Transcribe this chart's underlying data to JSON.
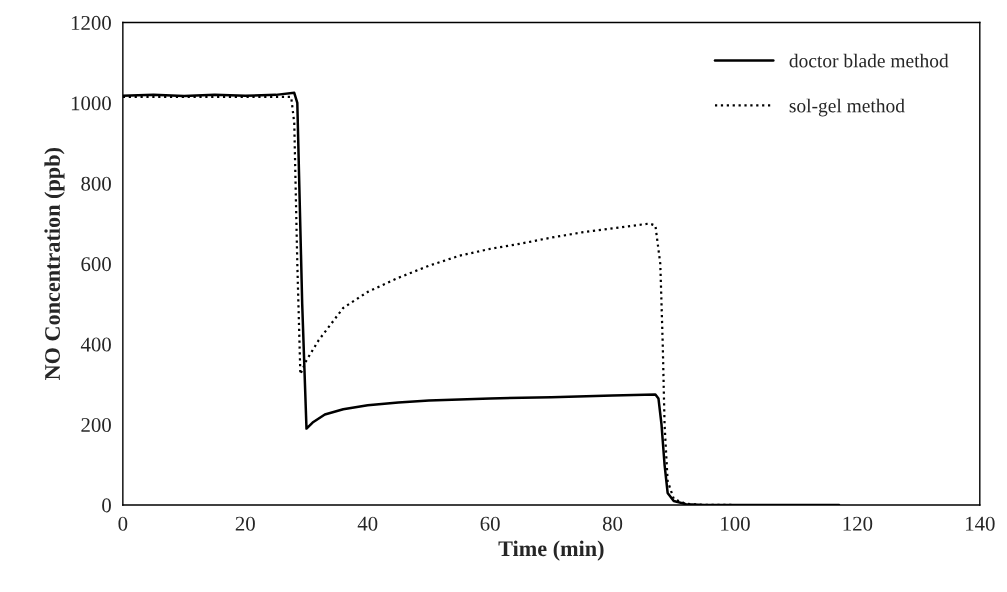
{
  "chart_data": {
    "type": "line",
    "xlabel": "Time (min)",
    "ylabel": "NO Concentration (ppb)",
    "xlim": [
      0,
      140
    ],
    "xticks": [
      0,
      20,
      40,
      60,
      80,
      100,
      120,
      140
    ],
    "ylim": [
      0,
      1200
    ],
    "yticks": [
      0,
      200,
      400,
      600,
      800,
      1000,
      1200
    ],
    "grid": false,
    "legend": "top right",
    "marker": "none",
    "series": [
      {
        "name": "doctor blade method",
        "color": "#000000",
        "line_style": "solid",
        "x": [
          0,
          5,
          10,
          15,
          20,
          25,
          28,
          28.5,
          29.3,
          30,
          31,
          33,
          36,
          40,
          45,
          50,
          60,
          70,
          80,
          87,
          87.5,
          88,
          88.5,
          89,
          90,
          92,
          95,
          117
        ],
        "values": [
          1018,
          1020,
          1017,
          1020,
          1018,
          1020,
          1025,
          1000,
          500,
          190,
          205,
          225,
          238,
          248,
          255,
          260,
          265,
          268,
          272,
          275,
          265,
          200,
          100,
          30,
          10,
          2,
          0,
          0
        ]
      },
      {
        "name": "sol-gel method",
        "color": "#000000",
        "line_style": "dotted",
        "x": [
          0,
          5,
          10,
          15,
          20,
          25,
          27.5,
          28,
          28.5,
          29,
          30,
          32,
          34,
          36,
          40,
          45,
          50,
          55,
          60,
          65,
          70,
          75,
          80,
          86,
          87,
          87.8,
          88.2,
          88.5,
          89,
          90,
          92,
          95,
          100
        ],
        "values": [
          1015,
          1015,
          1015,
          1015,
          1015,
          1015,
          1015,
          950,
          600,
          325,
          360,
          410,
          450,
          490,
          530,
          565,
          595,
          620,
          637,
          650,
          665,
          678,
          688,
          700,
          695,
          600,
          400,
          200,
          60,
          15,
          3,
          0,
          0
        ]
      }
    ]
  }
}
